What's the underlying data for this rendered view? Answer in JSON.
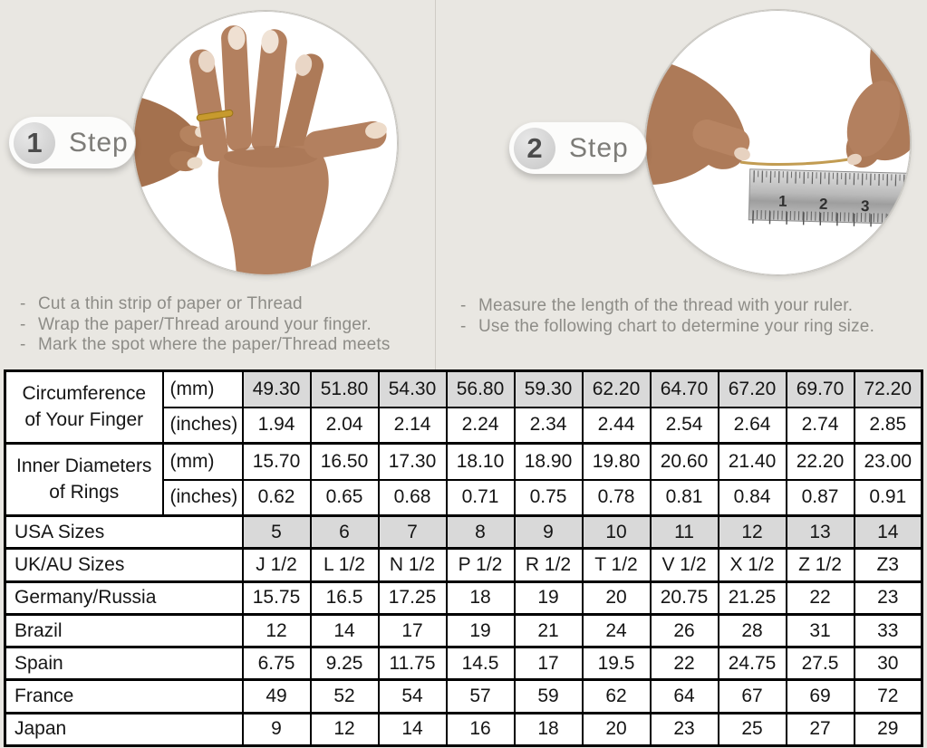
{
  "bullet": "-",
  "colors": {
    "background": "#e9e7e2",
    "shaded_cell": "#d9d9d9",
    "ring_gold": "#c79a2e",
    "instruction_text": "#8d8c87"
  },
  "steps": [
    {
      "number": "1",
      "label": "Step",
      "photo_description": "hand with thin gold ring on finger",
      "instructions": [
        "Cut a thin strip of paper or Thread",
        "Wrap the paper/Thread around your finger.",
        "Mark the spot where the paper/Thread meets"
      ]
    },
    {
      "number": "2",
      "label": "Step",
      "photo_description": "two hands measuring thread length on a ruler",
      "instructions": [
        "Measure the length of the thread with your ruler.",
        "Use the following chart to determine your ring size."
      ]
    }
  ],
  "ruler": {
    "numbers": [
      "1",
      "2",
      "3"
    ]
  },
  "table": {
    "groups": [
      {
        "label_lines": [
          "Circumference",
          "of Your Finger"
        ],
        "rows": [
          {
            "unit": "(mm)",
            "shaded": true,
            "values": [
              "49.30",
              "51.80",
              "54.30",
              "56.80",
              "59.30",
              "62.20",
              "64.70",
              "67.20",
              "69.70",
              "72.20"
            ]
          },
          {
            "unit": "(inches)",
            "shaded": false,
            "values": [
              "1.94",
              "2.04",
              "2.14",
              "2.24",
              "2.34",
              "2.44",
              "2.54",
              "2.64",
              "2.74",
              "2.85"
            ]
          }
        ]
      },
      {
        "label_lines": [
          "Inner Diameters",
          "of Rings"
        ],
        "rows": [
          {
            "unit": "(mm)",
            "shaded": false,
            "values": [
              "15.70",
              "16.50",
              "17.30",
              "18.10",
              "18.90",
              "19.80",
              "20.60",
              "21.40",
              "22.20",
              "23.00"
            ]
          },
          {
            "unit": "(inches)",
            "shaded": false,
            "values": [
              "0.62",
              "0.65",
              "0.68",
              "0.71",
              "0.75",
              "0.78",
              "0.81",
              "0.84",
              "0.87",
              "0.91"
            ]
          }
        ]
      }
    ],
    "size_rows": [
      {
        "label": "USA Sizes",
        "shaded": true,
        "values": [
          "5",
          "6",
          "7",
          "8",
          "9",
          "10",
          "11",
          "12",
          "13",
          "14"
        ]
      },
      {
        "label": "UK/AU Sizes",
        "shaded": false,
        "values": [
          "J 1/2",
          "L 1/2",
          "N 1/2",
          "P 1/2",
          "R 1/2",
          "T 1/2",
          "V 1/2",
          "X 1/2",
          "Z 1/2",
          "Z3"
        ]
      },
      {
        "label": "Germany/Russia",
        "shaded": false,
        "values": [
          "15.75",
          "16.5",
          "17.25",
          "18",
          "19",
          "20",
          "20.75",
          "21.25",
          "22",
          "23"
        ]
      },
      {
        "label": "Brazil",
        "shaded": false,
        "values": [
          "12",
          "14",
          "17",
          "19",
          "21",
          "24",
          "26",
          "28",
          "31",
          "33"
        ]
      },
      {
        "label": "Spain",
        "shaded": false,
        "values": [
          "6.75",
          "9.25",
          "11.75",
          "14.5",
          "17",
          "19.5",
          "22",
          "24.75",
          "27.5",
          "30"
        ]
      },
      {
        "label": "France",
        "shaded": false,
        "values": [
          "49",
          "52",
          "54",
          "57",
          "59",
          "62",
          "64",
          "67",
          "69",
          "72"
        ]
      },
      {
        "label": "Japan",
        "shaded": false,
        "values": [
          "9",
          "12",
          "14",
          "16",
          "18",
          "20",
          "23",
          "25",
          "27",
          "29"
        ]
      }
    ]
  }
}
